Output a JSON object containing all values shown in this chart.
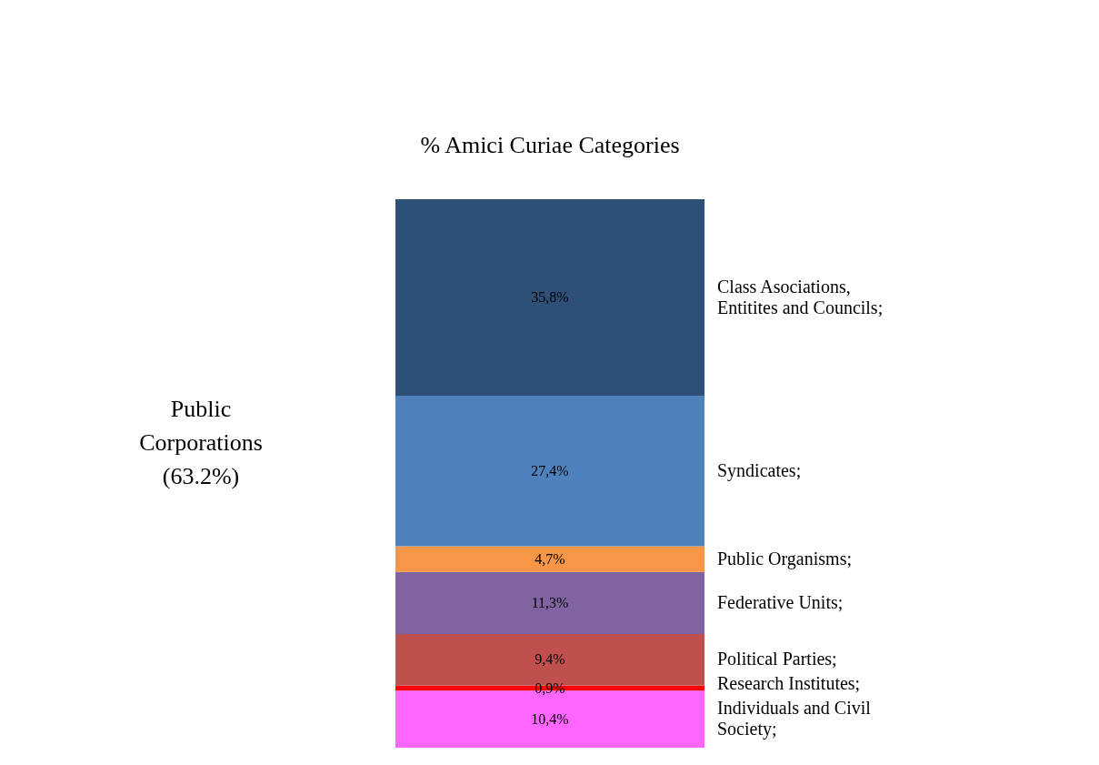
{
  "chart_data": {
    "type": "bar",
    "title": "% Amici Curiae Categories",
    "stacked": true,
    "categories": [
      null
    ],
    "series": [
      {
        "name": "Individuals and Civil Society;",
        "color": "#ff66ff",
        "values": [
          10.4
        ],
        "value_labels": [
          "10,4%"
        ]
      },
      {
        "name": "Research Institutes;",
        "color": "#ff0000",
        "values": [
          0.9
        ],
        "value_labels": [
          "0,9%"
        ]
      },
      {
        "name": "Political Parties;",
        "color": "#c0504d",
        "values": [
          9.4
        ],
        "value_labels": [
          "9,4%"
        ]
      },
      {
        "name": "Federative Units;",
        "color": "#8064a2",
        "values": [
          11.3
        ],
        "value_labels": [
          "11,3%"
        ]
      },
      {
        "name": "Public Organisms;",
        "color": "#f79646",
        "values": [
          4.7
        ],
        "value_labels": [
          "4,7%"
        ]
      },
      {
        "name": "Syndicates;",
        "color": "#4f81bd",
        "values": [
          27.4
        ],
        "value_labels": [
          "27,4%"
        ]
      },
      {
        "name": "Class Asociations, Entitites and Councils;",
        "color": "#2e4f77",
        "values": [
          35.8
        ],
        "value_labels": [
          "35,8%"
        ]
      }
    ],
    "annotations": [
      "Public Corporations (63.2%)"
    ]
  }
}
